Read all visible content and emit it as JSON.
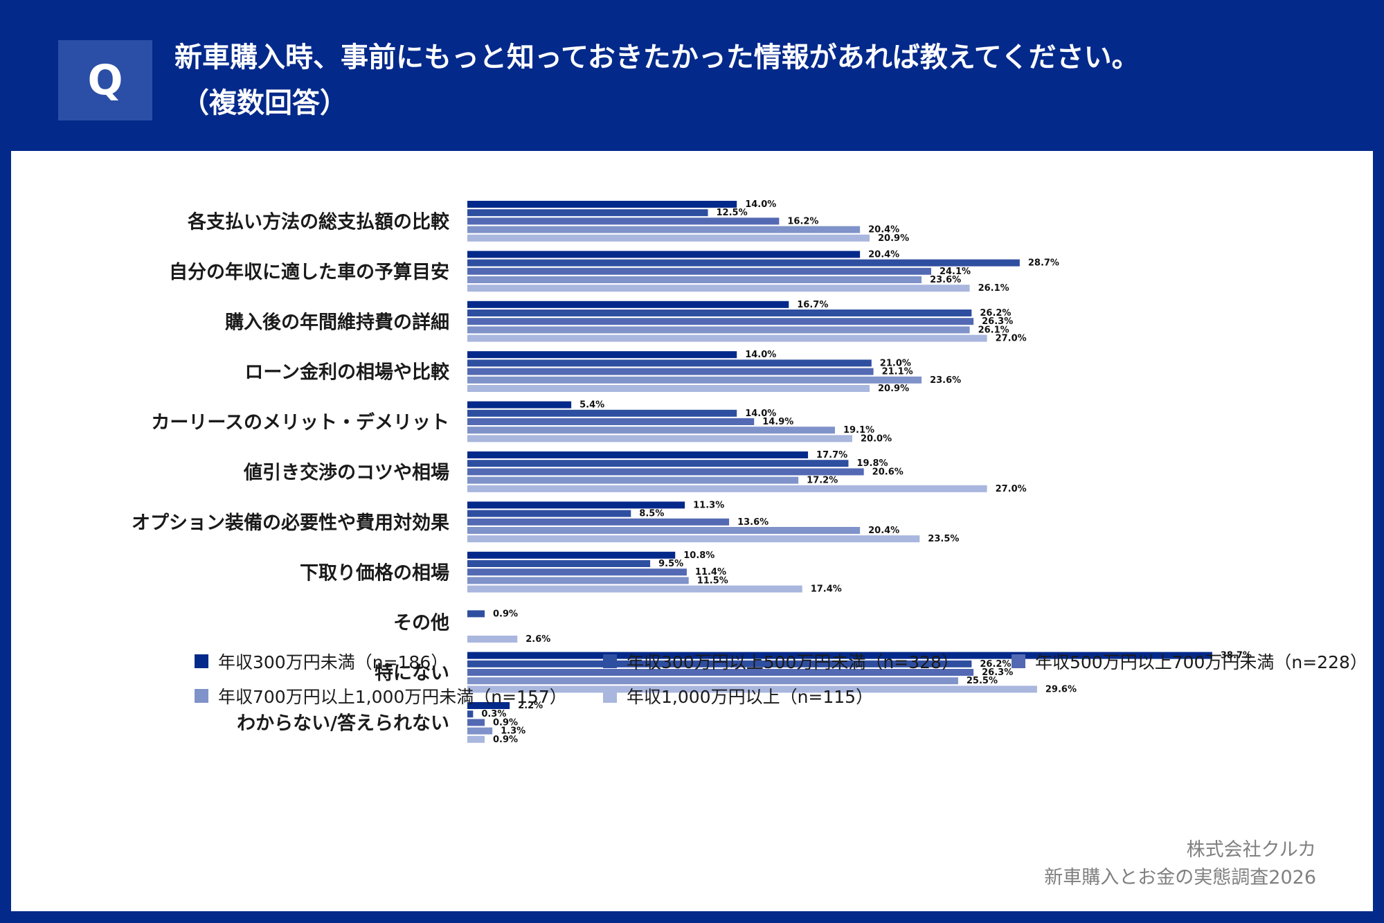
{
  "header": {
    "q_label": "Q",
    "title_line1": "新車購入時、事前にもっと知っておきたかった情報があれば教えてください。",
    "title_line2": "（複数回答）"
  },
  "colors": {
    "background": "#03298a",
    "series": [
      "#03298a",
      "#2e4ea0",
      "#5369b3",
      "#7f92c9",
      "#a9b6de"
    ]
  },
  "chart_data": {
    "type": "bar",
    "orientation": "horizontal",
    "categories": [
      "各支払い方法の総支払額の比較",
      "自分の年収に適した車の予算目安",
      "購入後の年間維持費の詳細",
      "ローン金利の相場や比較",
      "カーリースのメリット・デメリット",
      "値引き交渉のコツや相場",
      "オプション装備の必要性や費用対効果",
      "下取り価格の相場",
      "その他",
      "特にない",
      "わからない/答えられない"
    ],
    "series": [
      {
        "name": "年収300万円未満（n=186）",
        "values": [
          14.0,
          20.4,
          16.7,
          14.0,
          5.4,
          17.7,
          11.3,
          10.8,
          null,
          38.7,
          2.2
        ]
      },
      {
        "name": "年収300万円以上500万円未満（n=328）",
        "values": [
          12.5,
          28.7,
          26.2,
          21.0,
          14.0,
          19.8,
          8.5,
          9.5,
          0.9,
          26.2,
          0.3
        ]
      },
      {
        "name": "年収500万円以上700万円未満（n=228）",
        "values": [
          16.2,
          24.1,
          26.3,
          21.1,
          14.9,
          20.6,
          13.6,
          11.4,
          null,
          26.3,
          0.9
        ]
      },
      {
        "name": "年収700万円以上1,000万円未満（n=157）",
        "values": [
          20.4,
          23.6,
          26.1,
          23.6,
          19.1,
          17.2,
          20.4,
          11.5,
          null,
          25.5,
          1.3
        ]
      },
      {
        "name": "年収1,000万円以上（n=115）",
        "values": [
          20.9,
          26.1,
          27.0,
          20.9,
          20.0,
          27.0,
          23.5,
          17.4,
          2.6,
          29.6,
          0.9
        ]
      }
    ],
    "value_suffix": "%",
    "xlim": [
      0,
      40
    ],
    "legend_position": "bottom"
  },
  "credit": {
    "line1": "株式会社クルカ",
    "line2": "新車購入とお金の実態調査2026"
  }
}
